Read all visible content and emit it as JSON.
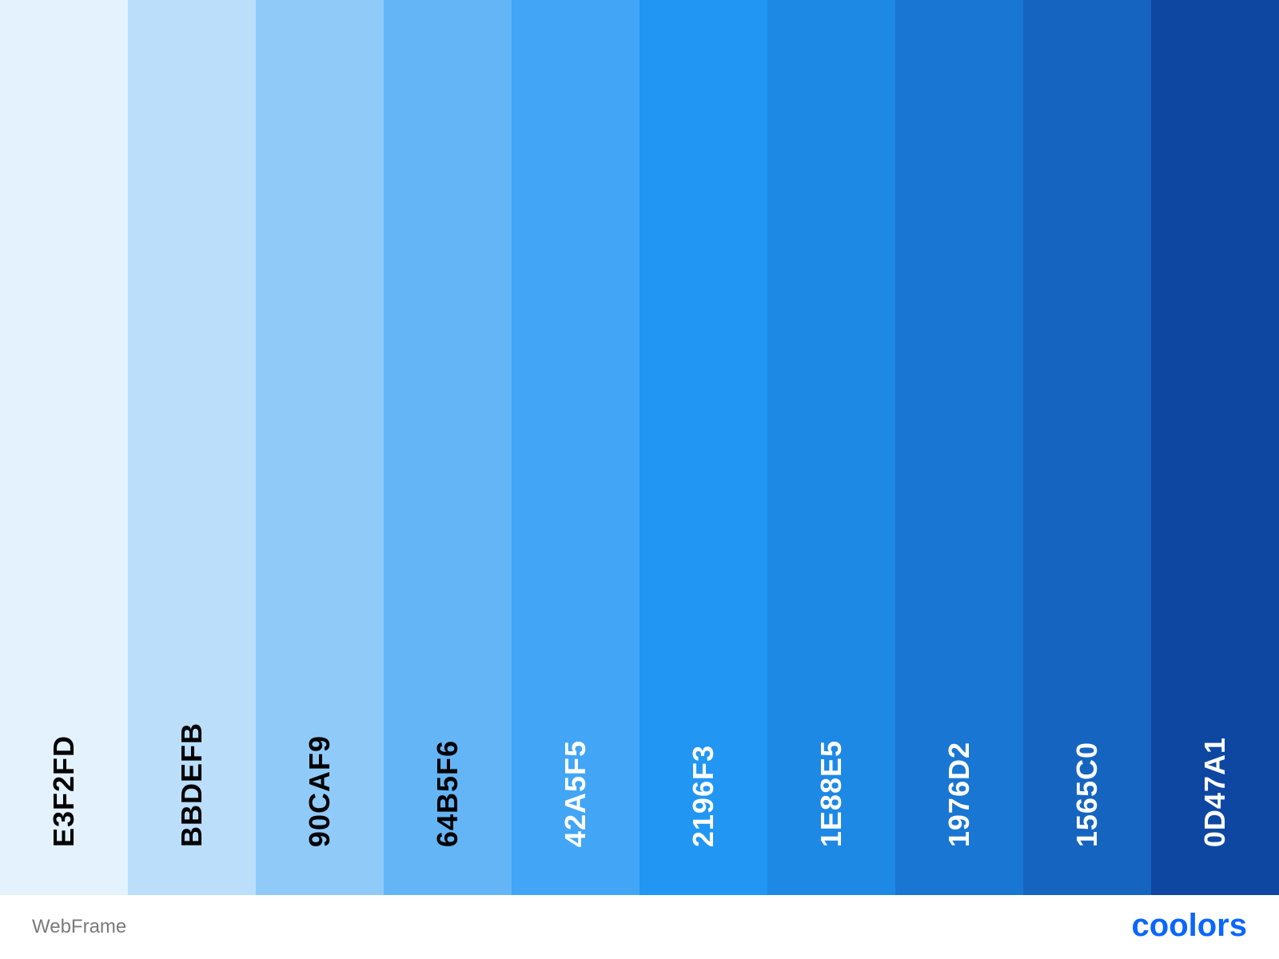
{
  "palette": {
    "swatches": [
      {
        "code": "E3F2FD",
        "color": "#E3F2FD",
        "text_color": "#000000"
      },
      {
        "code": "BBDEFB",
        "color": "#BBDEFB",
        "text_color": "#000000"
      },
      {
        "code": "90CAF9",
        "color": "#90CAF9",
        "text_color": "#000000"
      },
      {
        "code": "64B5F6",
        "color": "#64B5F6",
        "text_color": "#000000"
      },
      {
        "code": "42A5F5",
        "color": "#42A5F5",
        "text_color": "#FFFFFF"
      },
      {
        "code": "2196F3",
        "color": "#2196F3",
        "text_color": "#FFFFFF"
      },
      {
        "code": "1E88E5",
        "color": "#1E88E5",
        "text_color": "#FFFFFF"
      },
      {
        "code": "1976D2",
        "color": "#1976D2",
        "text_color": "#FFFFFF"
      },
      {
        "code": "1565C0",
        "color": "#1565C0",
        "text_color": "#FFFFFF"
      },
      {
        "code": "0D47A1",
        "color": "#0D47A1",
        "text_color": "#FFFFFF"
      }
    ]
  },
  "footer": {
    "title": "WebFrame",
    "brand": "coolors",
    "brand_color": "#0A66FF"
  }
}
